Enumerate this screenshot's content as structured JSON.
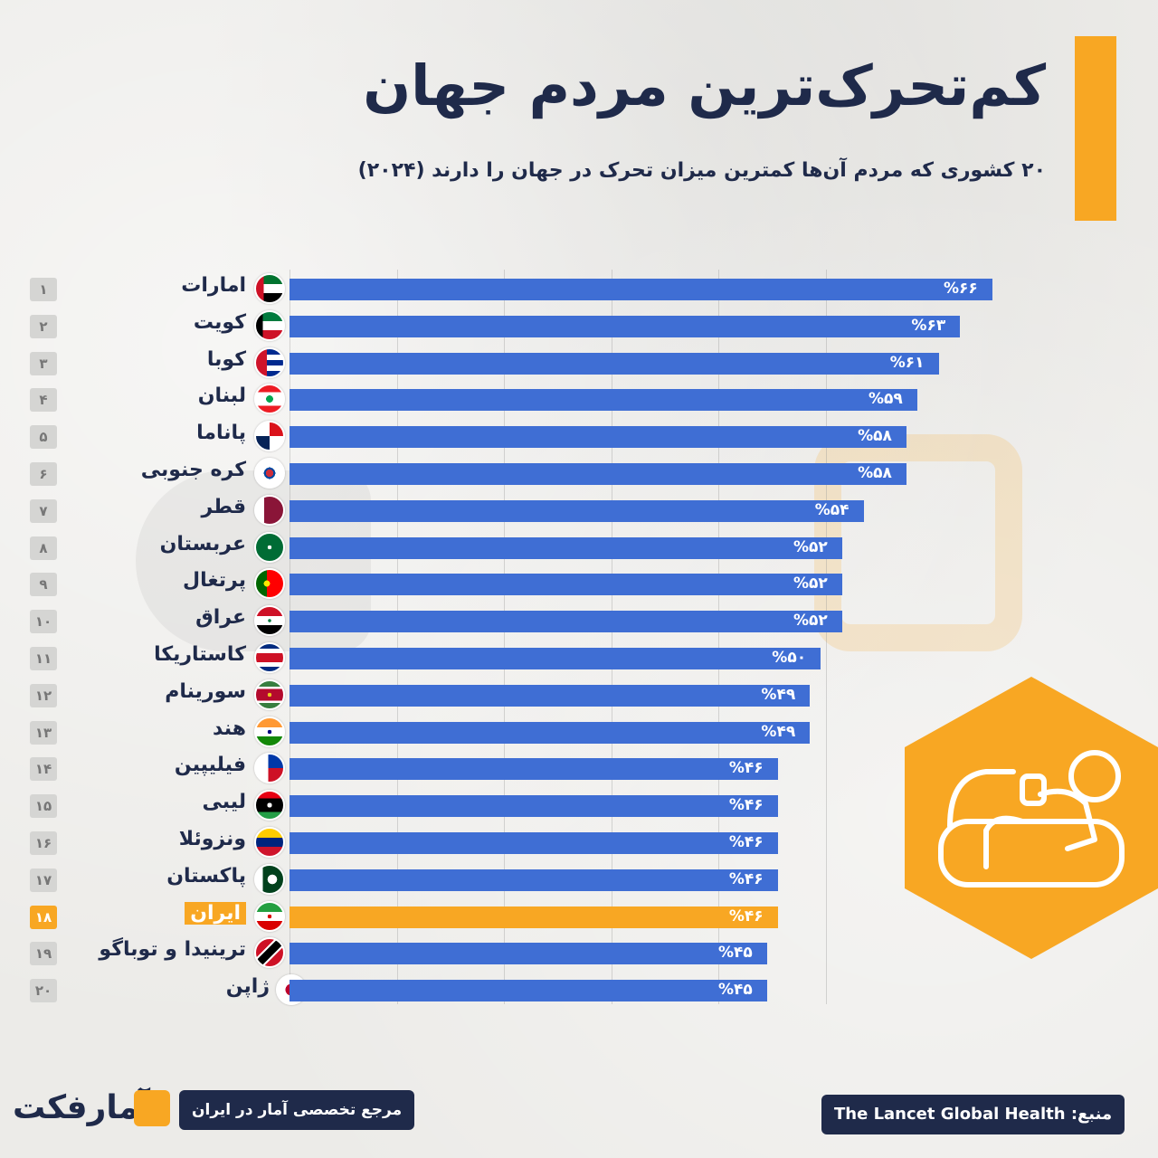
{
  "title": "کم‌تحرک‌ترین مردم جهان",
  "subtitle": "۲۰ کشوری که مردم آن‌ها کمترین میزان تحرک در جهان را دارند (۲۰۲۴)",
  "colors": {
    "bar": "#3f6ed4",
    "highlight": "#f8a723",
    "navy": "#1f2a4a"
  },
  "chart_data": {
    "type": "bar",
    "orientation": "horizontal",
    "unit": "%",
    "highlight_index": 17,
    "categories": [
      "امارات",
      "کویت",
      "کوبا",
      "لبنان",
      "پاناما",
      "کره جنوبی",
      "قطر",
      "عربستان",
      "پرتغال",
      "عراق",
      "کاستاریکا",
      "سورینام",
      "هند",
      "فیلیپین",
      "لیبی",
      "ونزوئلا",
      "پاکستان",
      "ایران",
      "ترینیدا و توباگو",
      "ژاپن"
    ],
    "ranks": [
      "۱",
      "۲",
      "۳",
      "۴",
      "۵",
      "۶",
      "۷",
      "۸",
      "۹",
      "۱۰",
      "۱۱",
      "۱۲",
      "۱۳",
      "۱۴",
      "۱۵",
      "۱۶",
      "۱۷",
      "۱۸",
      "۱۹",
      "۲۰"
    ],
    "values": [
      66,
      63,
      61,
      59,
      58,
      58,
      54,
      52,
      52,
      52,
      50,
      49,
      49,
      46,
      46,
      46,
      46,
      46,
      45,
      45
    ],
    "value_labels": [
      "%۶۶",
      "%۶۳",
      "%۶۱",
      "%۵۹",
      "%۵۸",
      "%۵۸",
      "%۵۴",
      "%۵۲",
      "%۵۲",
      "%۵۲",
      "%۵۰",
      "%۴۹",
      "%۴۹",
      "%۴۶",
      "%۴۶",
      "%۴۶",
      "%۴۶",
      "%۴۶",
      "%۴۵",
      "%۴۵"
    ],
    "flags": [
      "uae-flag",
      "kuwait-flag",
      "cuba-flag",
      "lebanon-flag",
      "panama-flag",
      "south-korea-flag",
      "qatar-flag",
      "saudi-arabia-flag",
      "portugal-flag",
      "iraq-flag",
      "costa-rica-flag",
      "suriname-flag",
      "india-flag",
      "philippines-flag",
      "libya-flag",
      "venezuela-flag",
      "pakistan-flag",
      "iran-flag",
      "trinidad-tobago-flag",
      "japan-flag"
    ],
    "grid": true
  },
  "footer": {
    "brand": "آمارفکت",
    "reference": "مرجع تخصصی آمار در ایران",
    "source": "منبع: The Lancet Global Health"
  }
}
